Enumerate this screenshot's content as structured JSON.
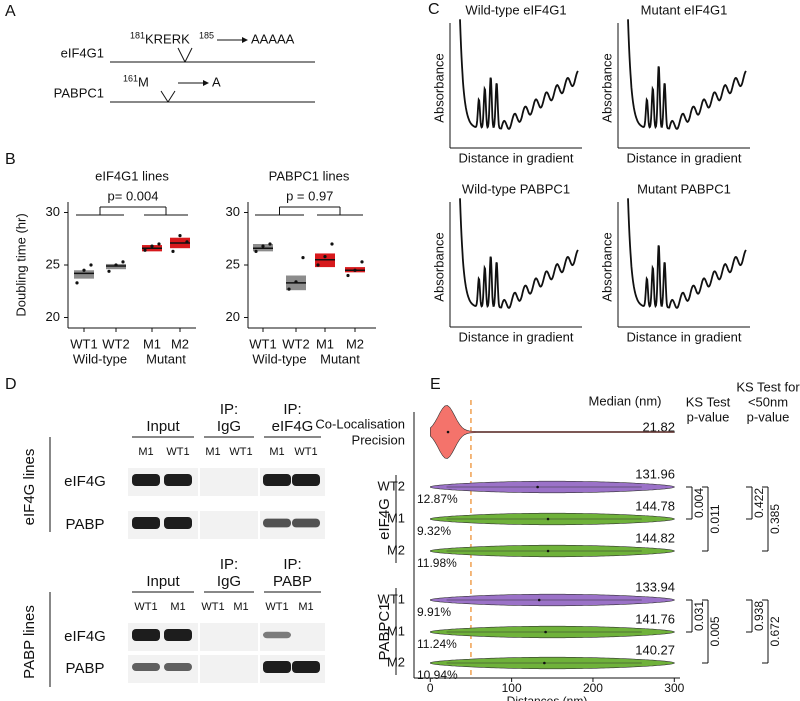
{
  "panel_labels": [
    "A",
    "B",
    "C",
    "D",
    "E"
  ],
  "panel_a": {
    "rows": [
      {
        "protein": "eIF4G1",
        "start": 181,
        "residues": "KRERK",
        "end": 185,
        "mutant": "AAAAA"
      },
      {
        "protein": "PABPC1",
        "start": 161,
        "residues": "M",
        "mutant": "A"
      }
    ]
  },
  "panel_c": {
    "y_label": "Absorbance",
    "x_label": "Distance in gradient",
    "titles": [
      "Wild-type eIF4G1",
      "Mutant eIF4G1",
      "Wild-type PABPC1",
      "Mutant PABPC1"
    ]
  },
  "panel_d": {
    "top": {
      "group": "eIF4G lines",
      "headers": [
        [
          "Input"
        ],
        [
          "IP:",
          "IgG"
        ],
        [
          "IP:",
          "eIF4G"
        ]
      ],
      "lanes": [
        "M1",
        "WT1",
        "M1",
        "WT1",
        "M1",
        "WT1"
      ],
      "rows": [
        "eIF4G",
        "PABP"
      ]
    },
    "bottom": {
      "group": "PABP lines",
      "headers": [
        [
          "Input"
        ],
        [
          "IP:",
          "IgG"
        ],
        [
          "IP:",
          "PABP"
        ]
      ],
      "lanes": [
        "WT1",
        "M1",
        "WT1",
        "M1",
        "WT1",
        "M1"
      ],
      "rows": [
        "eIF4G",
        "PABP"
      ]
    }
  },
  "chart_data": [
    {
      "type": "box",
      "title": "eIF4G1 lines",
      "y_label": "Doubling time (hr)",
      "categories": [
        "WT1",
        "WT2",
        "M1",
        "M2"
      ],
      "category_colors": [
        "#111111",
        "#111111",
        "#e31a1c",
        "#e31a1c"
      ],
      "box_colors": [
        "#8c8c8c",
        "#8c8c8c",
        "#d7191c",
        "#d7191c"
      ],
      "groups": [
        {
          "name": "Wild-type",
          "color": "#111111"
        },
        {
          "name": "Mutant",
          "color": "#e31a1c"
        }
      ],
      "q1": [
        23.7,
        24.6,
        26.3,
        26.6
      ],
      "median": [
        24.2,
        24.9,
        26.6,
        27.1
      ],
      "q3": [
        24.5,
        25.1,
        26.9,
        27.6
      ],
      "points": [
        [
          23.3,
          24.5,
          25.0
        ],
        [
          24.4,
          25.0,
          25.3
        ],
        [
          26.4,
          26.8,
          27.0
        ],
        [
          26.3,
          27.8,
          27.2
        ]
      ],
      "annotation": "p= 0.004",
      "ylim": [
        19,
        31
      ],
      "yticks": [
        20,
        25,
        30
      ]
    },
    {
      "type": "box",
      "title": "PABPC1 lines",
      "categories": [
        "WT1",
        "WT2",
        "M1",
        "M2"
      ],
      "category_colors": [
        "#111111",
        "#111111",
        "#e31a1c",
        "#e31a1c"
      ],
      "box_colors": [
        "#8c8c8c",
        "#8c8c8c",
        "#d7191c",
        "#d7191c"
      ],
      "groups": [
        {
          "name": "Wild-type",
          "color": "#111111"
        },
        {
          "name": "Mutant",
          "color": "#e31a1c"
        }
      ],
      "q1": [
        26.3,
        22.6,
        24.8,
        24.3
      ],
      "median": [
        26.6,
        23.3,
        25.5,
        24.5
      ],
      "q3": [
        27.0,
        24.0,
        26.1,
        24.8
      ],
      "points": [
        [
          26.3,
          26.8,
          27.0
        ],
        [
          22.7,
          23.4,
          25.7
        ],
        [
          25.0,
          25.8,
          27.0
        ],
        [
          24.0,
          24.5,
          25.3
        ]
      ],
      "annotation": "p = 0.97",
      "ylim": [
        19,
        31
      ],
      "yticks": [
        20,
        25,
        30
      ]
    },
    {
      "type": "violin",
      "x_label": "Distances (nm)",
      "xlim": [
        -20,
        307
      ],
      "xticks": [
        0,
        100,
        200,
        300
      ],
      "threshold": 50,
      "threshold_color": "#f0a050",
      "median_header": "Median (nm)",
      "ks_header": [
        "KS Test",
        "p-value"
      ],
      "ks50_header": [
        "KS Test for",
        "<50nm",
        "p-value"
      ],
      "reference": {
        "label": [
          "Co-Localisation",
          "Precision"
        ],
        "color": "#f4736b",
        "median": 21.82
      },
      "groups": [
        {
          "name": "eIF4G",
          "ks_test": [
            0.004,
            0.011
          ],
          "ks_test_50": [
            0.422,
            0.385
          ],
          "rows": [
            {
              "label": "WT2",
              "color": "#9b72c8",
              "median": 131.96,
              "below": 12.87,
              "below_label": "12.87%"
            },
            {
              "label": "M1",
              "color": "#6fb23a",
              "median": 144.78,
              "below": 9.32,
              "below_label": "9.32%"
            },
            {
              "label": "M2",
              "color": "#6fb23a",
              "median": 144.82,
              "below": 11.98,
              "below_label": "11.98%"
            }
          ]
        },
        {
          "name": "PABPC1",
          "ks_test": [
            0.031,
            0.005
          ],
          "ks_test_50": [
            0.938,
            0.672
          ],
          "rows": [
            {
              "label": "WT1",
              "color": "#9b72c8",
              "median": 133.94,
              "below": 9.91,
              "below_label": "9.91%"
            },
            {
              "label": "M1",
              "color": "#6fb23a",
              "median": 141.76,
              "below": 11.24,
              "below_label": "11.24%"
            },
            {
              "label": "M2",
              "color": "#6fb23a",
              "median": 140.27,
              "below": 10.94,
              "below_label": "10.94%"
            }
          ]
        }
      ]
    }
  ]
}
